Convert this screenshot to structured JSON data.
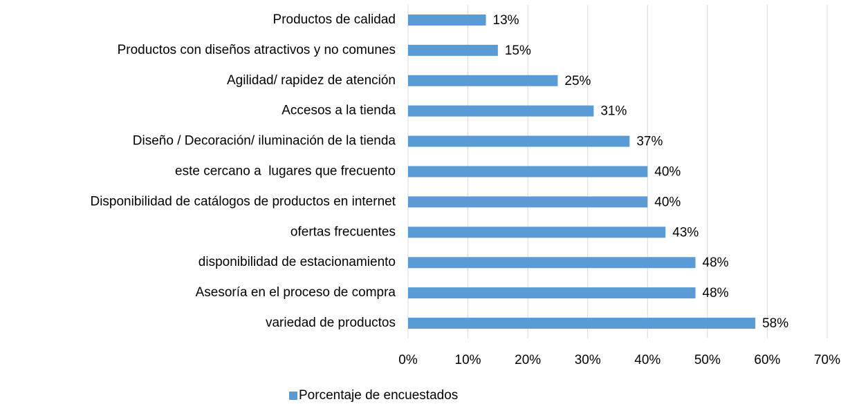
{
  "chart_data": {
    "type": "bar",
    "orientation": "horizontal",
    "categories": [
      "Productos de calidad",
      "Productos con diseños atractivos y no comunes",
      "Agilidad/ rapidez de atención",
      "Accesos a la tienda",
      "Diseño / Decoración/ iluminación de la tienda",
      "este cercano a  lugares que frecuento",
      "Disponibilidad de catálogos de productos en internet",
      "ofertas frecuentes",
      "disponibilidad de estacionamiento",
      "Asesoría en el proceso de compra",
      "variedad de productos"
    ],
    "series": [
      {
        "name": "Porcentaje de encuestados",
        "color": "#5b9bd5",
        "values": [
          13,
          15,
          25,
          31,
          37,
          40,
          40,
          43,
          48,
          48,
          58
        ],
        "value_labels": [
          "13%",
          "15%",
          "25%",
          "31%",
          "37%",
          "40%",
          "40%",
          "43%",
          "48%",
          "48%",
          "58%"
        ]
      }
    ],
    "xlim": [
      0,
      70
    ],
    "xticks": [
      {
        "value": 0,
        "label": "0%"
      },
      {
        "value": 10,
        "label": "10%"
      },
      {
        "value": 20,
        "label": "20%"
      },
      {
        "value": 30,
        "label": "30%"
      },
      {
        "value": 40,
        "label": "40%"
      },
      {
        "value": 50,
        "label": "50%"
      },
      {
        "value": 60,
        "label": "60%"
      },
      {
        "value": 70,
        "label": "70%"
      }
    ],
    "grid": true,
    "legend": "bottom"
  }
}
